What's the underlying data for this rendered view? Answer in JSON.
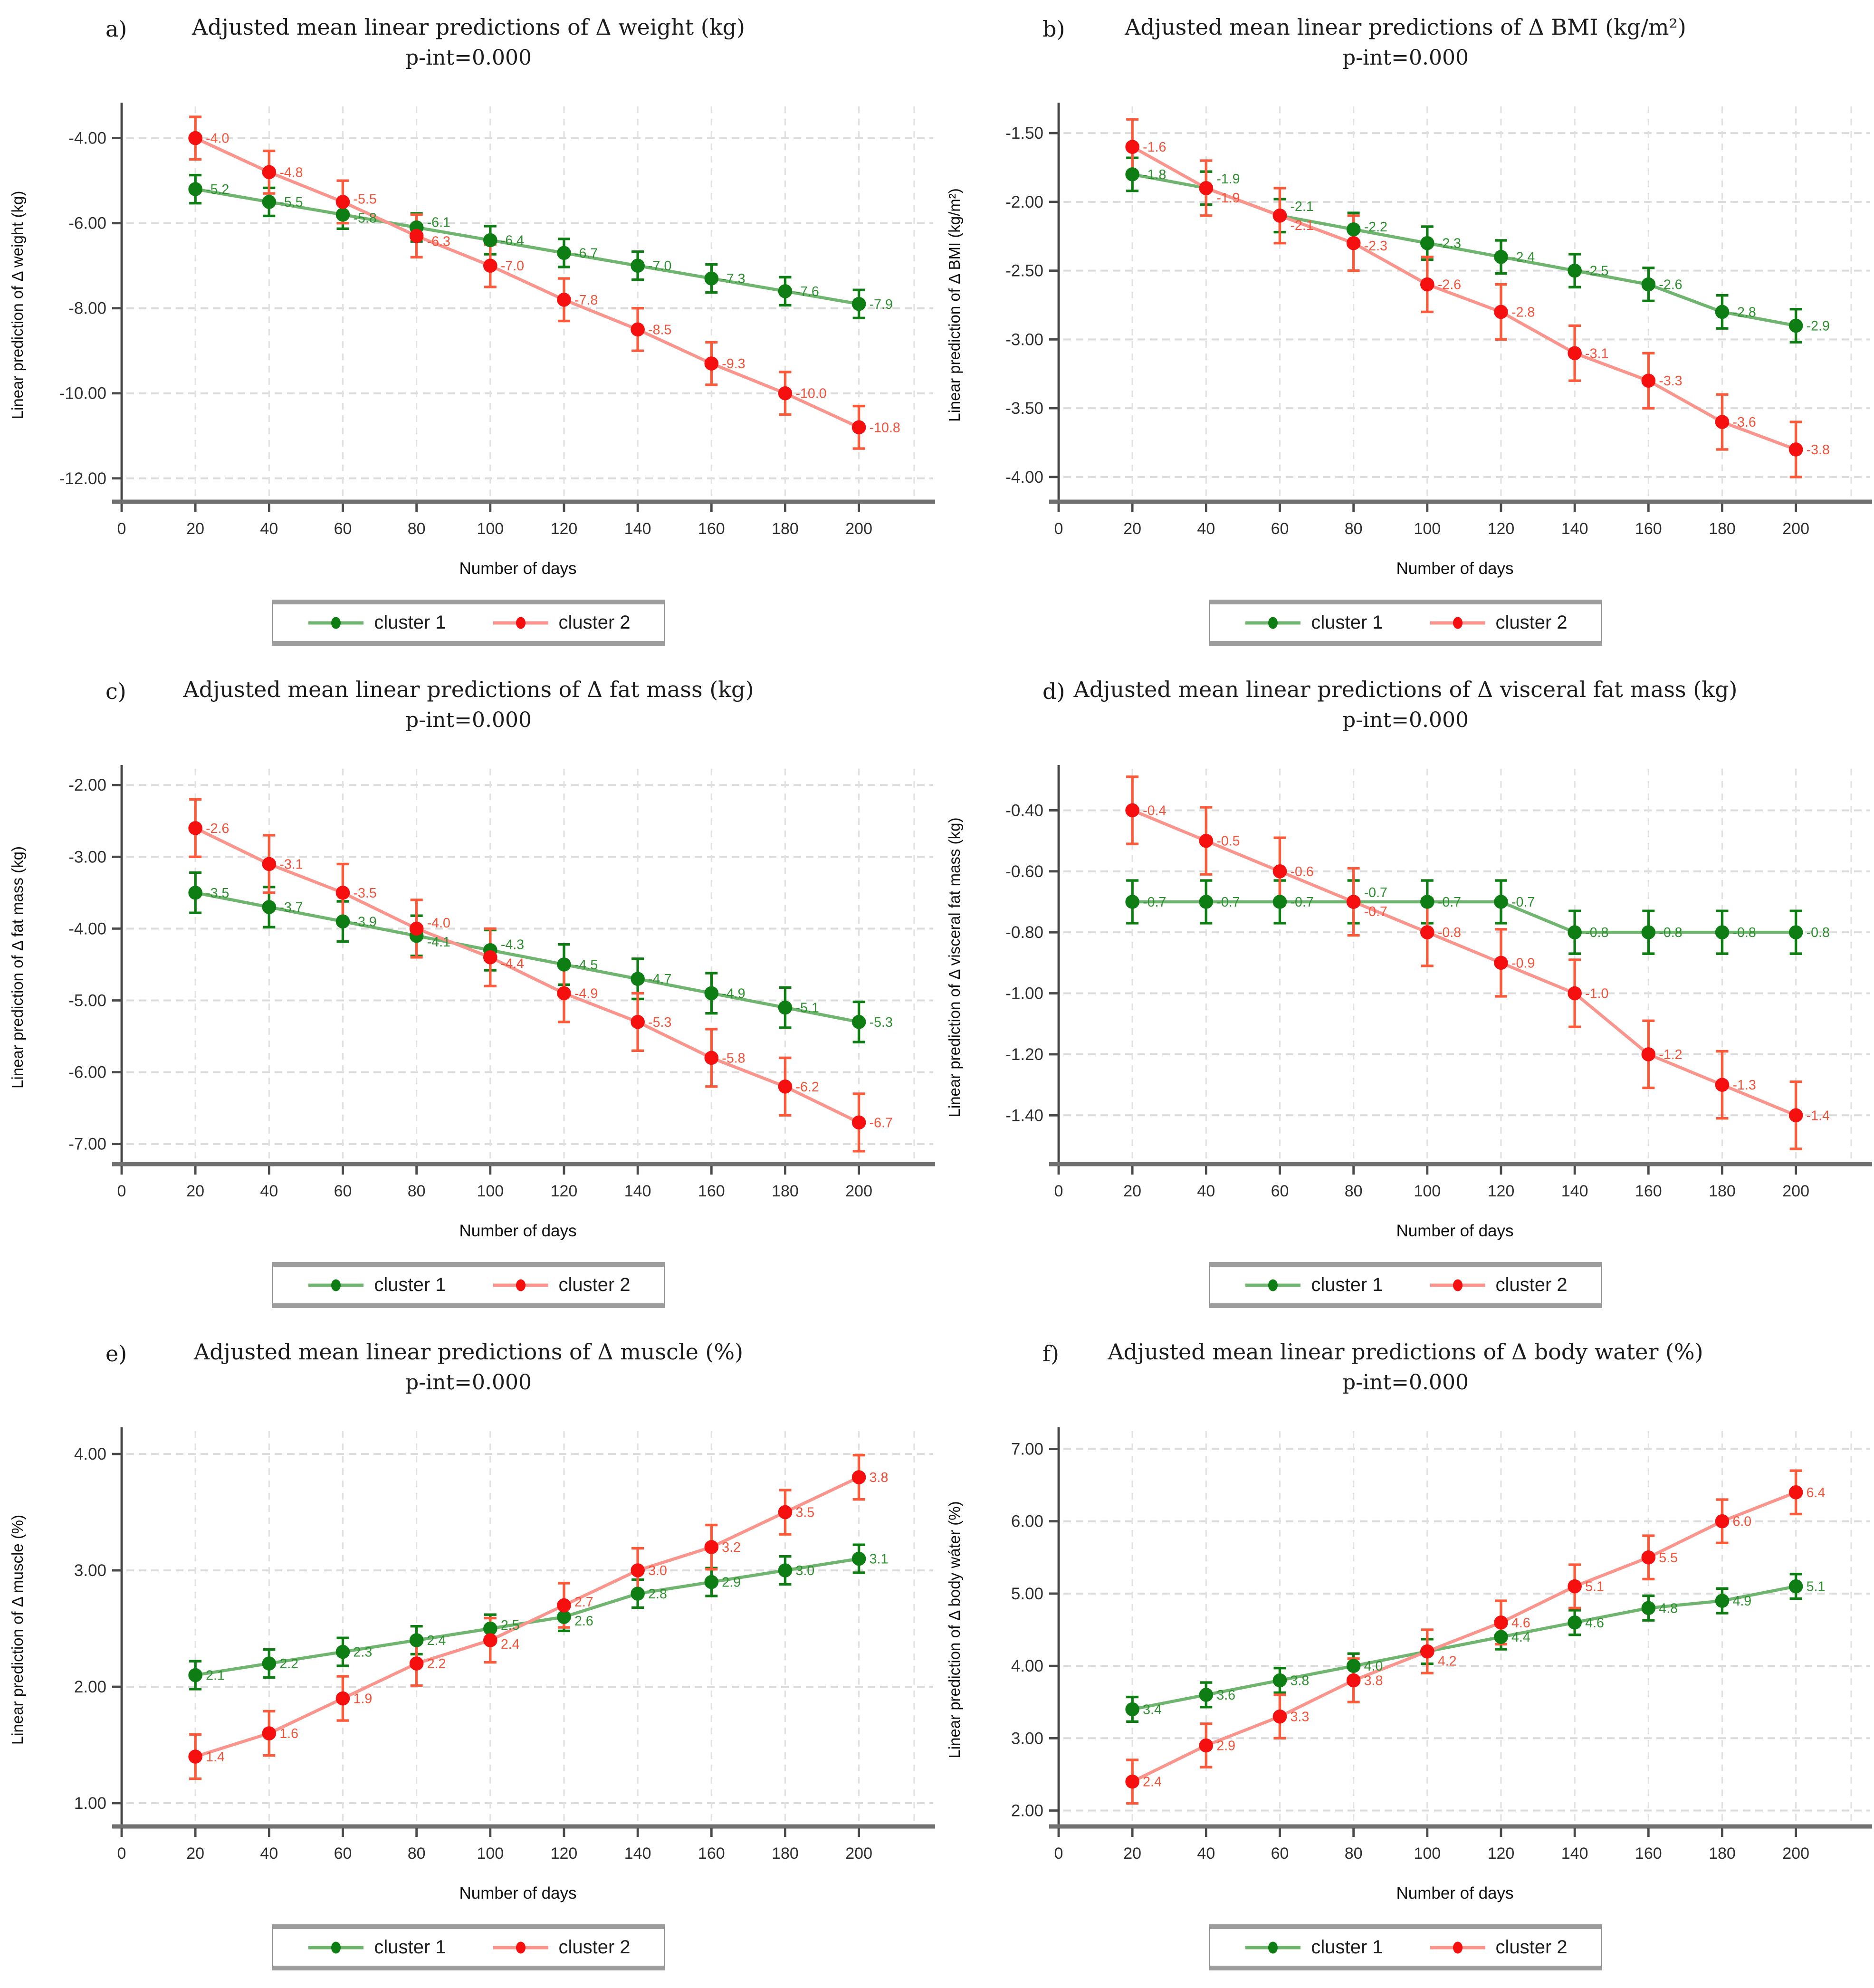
{
  "figure": {
    "description_visible_text_only": "Six-panel figure of adjusted mean linear predictions over number of days"
  },
  "legend": {
    "items": [
      {
        "label": "cluster 1"
      },
      {
        "label": "cluster 2"
      }
    ]
  },
  "colors": {
    "background": "#ffffff",
    "grid": "#dcdcdc",
    "grid_vertical": "#e2e2e2",
    "axis_x": "#707070",
    "axis_y": "#454545",
    "tick": "#4a4a4a",
    "tick_text": "#2e2e2e",
    "label_text": "#111111",
    "series": [
      {
        "name": "cluster 1",
        "marker": "#0e7d13",
        "line": "#6fb56f",
        "error": "#0e7d13",
        "label": "#2f8f31"
      },
      {
        "name": "cluster 2",
        "marker": "#f50f0f",
        "line": "#f9958c",
        "error": "#fb5a3b",
        "label": "#f4523b"
      }
    ]
  },
  "chart_data": [
    {
      "panel_letter": "a)",
      "type": "line",
      "title": "Adjusted mean linear predictions of Δ weight  (kg)",
      "subtitle": "p-int=0.000",
      "ylabel": "Linear prediction of Δ weight (kg)",
      "xlabel": "Number of days",
      "x": [
        20,
        40,
        60,
        80,
        100,
        120,
        140,
        160,
        180,
        200
      ],
      "xticks": [
        0,
        20,
        40,
        60,
        80,
        100,
        120,
        140,
        160,
        180,
        200
      ],
      "xlim": [
        0,
        215
      ],
      "yticks": [
        -4,
        -6,
        -8,
        -10,
        -12
      ],
      "ytick_labels": [
        "-4.00",
        "-6.00",
        "-8.00",
        "-10.00",
        "-12.00"
      ],
      "ylim": [
        -12.55,
        -3.3
      ],
      "series": [
        {
          "name": "cluster 1",
          "values": [
            -5.2,
            -5.5,
            -5.8,
            -6.1,
            -6.4,
            -6.7,
            -7.0,
            -7.3,
            -7.6,
            -7.9
          ],
          "ci": 0.33
        },
        {
          "name": "cluster 2",
          "values": [
            -4.0,
            -4.8,
            -5.5,
            -6.3,
            -7.0,
            -7.8,
            -8.5,
            -9.3,
            -10.0,
            -10.8
          ],
          "ci": 0.5
        }
      ]
    },
    {
      "panel_letter": "b)",
      "type": "line",
      "title": "Adjusted mean linear predictions of Δ BMI (kg/m²)",
      "subtitle": "p-int=0.000",
      "ylabel": "Linear prediction of Δ BMI (kg/m²)",
      "xlabel": "Number of days",
      "x": [
        20,
        40,
        60,
        80,
        100,
        120,
        140,
        160,
        180,
        200
      ],
      "xticks": [
        0,
        20,
        40,
        60,
        80,
        100,
        120,
        140,
        160,
        180,
        200
      ],
      "xlim": [
        0,
        215
      ],
      "yticks": [
        -1.5,
        -2.0,
        -2.5,
        -3.0,
        -3.5,
        -4.0
      ],
      "ytick_labels": [
        "-1.50",
        "-2.00",
        "-2.50",
        "-3.00",
        "-3.50",
        "-4.00"
      ],
      "ylim": [
        -4.18,
        -1.32
      ],
      "series": [
        {
          "name": "cluster 1",
          "values": [
            -1.8,
            -1.9,
            -2.1,
            -2.2,
            -2.3,
            -2.4,
            -2.5,
            -2.6,
            -2.8,
            -2.9
          ],
          "ci": 0.12
        },
        {
          "name": "cluster 2",
          "values": [
            -1.6,
            -1.9,
            -2.1,
            -2.3,
            -2.6,
            -2.8,
            -3.1,
            -3.3,
            -3.6,
            -3.8
          ],
          "ci": 0.2
        }
      ]
    },
    {
      "panel_letter": "c)",
      "type": "line",
      "title": "Adjusted mean linear predictions of Δ fat mass (kg)",
      "subtitle": "p-int=0.000",
      "ylabel": "Linear prediction of Δ fat mass (kg)",
      "xlabel": "Number of days",
      "x": [
        20,
        40,
        60,
        80,
        100,
        120,
        140,
        160,
        180,
        200
      ],
      "xticks": [
        0,
        20,
        40,
        60,
        80,
        100,
        120,
        140,
        160,
        180,
        200
      ],
      "xlim": [
        0,
        215
      ],
      "yticks": [
        -2,
        -3,
        -4,
        -5,
        -6,
        -7
      ],
      "ytick_labels": [
        "-2.00",
        "-3.00",
        "-4.00",
        "-5.00",
        "-6.00",
        "-7.00"
      ],
      "ylim": [
        -7.28,
        -1.8
      ],
      "series": [
        {
          "name": "cluster 1",
          "values": [
            -3.5,
            -3.7,
            -3.9,
            -4.1,
            -4.3,
            -4.5,
            -4.7,
            -4.9,
            -5.1,
            -5.3
          ],
          "ci": 0.28
        },
        {
          "name": "cluster 2",
          "values": [
            -2.6,
            -3.1,
            -3.5,
            -4.0,
            -4.4,
            -4.9,
            -5.3,
            -5.8,
            -6.2,
            -6.7
          ],
          "ci": 0.4
        }
      ]
    },
    {
      "panel_letter": "d)",
      "type": "line",
      "title": "Adjusted mean linear predictions of Δ visceral fat mass (kg)",
      "subtitle": "p-int=0.000",
      "ylabel": "Linear prediction of Δ visceral fat mass (kg)",
      "xlabel": "Number of days",
      "x": [
        20,
        40,
        60,
        80,
        100,
        120,
        140,
        160,
        180,
        200
      ],
      "xticks": [
        0,
        20,
        40,
        60,
        80,
        100,
        120,
        140,
        160,
        180,
        200
      ],
      "xlim": [
        0,
        215
      ],
      "yticks": [
        -0.4,
        -0.6,
        -0.8,
        -1.0,
        -1.2,
        -1.4
      ],
      "ytick_labels": [
        "-0.40",
        "-0.60",
        "-0.80",
        "-1.00",
        "-1.20",
        "-1.40"
      ],
      "ylim": [
        -1.56,
        -0.27
      ],
      "series": [
        {
          "name": "cluster 1",
          "values": [
            -0.7,
            -0.7,
            -0.7,
            -0.7,
            -0.7,
            -0.7,
            -0.8,
            -0.8,
            -0.8,
            -0.8
          ],
          "ci": 0.07
        },
        {
          "name": "cluster 2",
          "values": [
            -0.4,
            -0.5,
            -0.6,
            -0.7,
            -0.8,
            -0.9,
            -1.0,
            -1.2,
            -1.3,
            -1.4
          ],
          "ci": 0.11
        }
      ]
    },
    {
      "panel_letter": "e)",
      "type": "line",
      "title": "Adjusted mean linear predictions of Δ muscle (%)",
      "subtitle": "p-int=0.000",
      "ylabel": "Linear prediction of Δ muscle (%)",
      "xlabel": "Number of days",
      "x": [
        20,
        40,
        60,
        80,
        100,
        120,
        140,
        160,
        180,
        200
      ],
      "xticks": [
        0,
        20,
        40,
        60,
        80,
        100,
        120,
        140,
        160,
        180,
        200
      ],
      "xlim": [
        0,
        215
      ],
      "yticks": [
        1,
        2,
        3,
        4
      ],
      "ytick_labels": [
        "1.00",
        "2.00",
        "3.00",
        "4.00"
      ],
      "ylim": [
        0.8,
        4.18
      ],
      "series": [
        {
          "name": "cluster 1",
          "values": [
            2.1,
            2.2,
            2.3,
            2.4,
            2.5,
            2.6,
            2.8,
            2.9,
            3.0,
            3.1
          ],
          "ci": 0.12
        },
        {
          "name": "cluster 2",
          "values": [
            1.4,
            1.6,
            1.9,
            2.2,
            2.4,
            2.7,
            3.0,
            3.2,
            3.5,
            3.8
          ],
          "ci": 0.19
        }
      ]
    },
    {
      "panel_letter": "f)",
      "type": "line",
      "title": "Adjusted mean linear predictions of Δ body water (%)",
      "subtitle": "p-int=0.000",
      "ylabel": "Linear prediction of Δ body wáter (%)",
      "xlabel": "Number of days",
      "x": [
        20,
        40,
        60,
        80,
        100,
        120,
        140,
        160,
        180,
        200
      ],
      "xticks": [
        0,
        20,
        40,
        60,
        80,
        100,
        120,
        140,
        160,
        180,
        200
      ],
      "xlim": [
        0,
        215
      ],
      "yticks": [
        2,
        3,
        4,
        5,
        6,
        7
      ],
      "ytick_labels": [
        "2.00",
        "3.00",
        "4.00",
        "5.00",
        "6.00",
        "7.00"
      ],
      "ylim": [
        1.78,
        7.22
      ],
      "series": [
        {
          "name": "cluster 1",
          "values": [
            3.4,
            3.6,
            3.8,
            4.0,
            4.2,
            4.4,
            4.6,
            4.8,
            4.9,
            5.1
          ],
          "ci": 0.17,
          "hide_label_idx": [
            4
          ]
        },
        {
          "name": "cluster 2",
          "values": [
            2.4,
            2.9,
            3.3,
            3.8,
            4.2,
            4.6,
            5.1,
            5.5,
            6.0,
            6.4
          ],
          "ci": 0.3
        }
      ]
    }
  ]
}
